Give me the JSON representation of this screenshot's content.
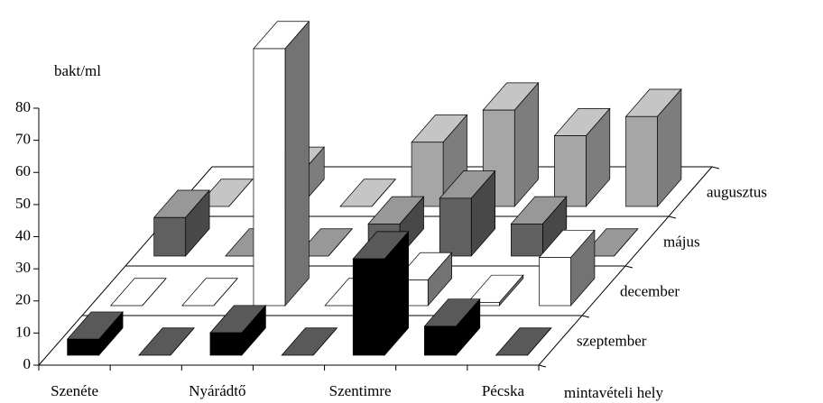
{
  "chart_data": {
    "type": "bar3d",
    "y_label": "bakt/ml",
    "x_label": "mintavételi hely",
    "categories": [
      "Szenéte",
      null,
      "Nyárádtő",
      null,
      "Szentimre",
      null,
      "Pécska"
    ],
    "series": [
      {
        "name": "szeptember",
        "color": "#000000",
        "values": [
          5,
          0,
          7,
          0,
          30,
          9,
          0
        ]
      },
      {
        "name": "december",
        "color": "#ffffff",
        "values": [
          0,
          0,
          80,
          0,
          8,
          1,
          15
        ]
      },
      {
        "name": "május",
        "color": "#606060",
        "values": [
          12,
          0,
          0,
          10,
          18,
          10,
          0
        ]
      },
      {
        "name": "augusztus",
        "color": "#a6a6a6",
        "values": [
          0,
          10,
          0,
          20,
          30,
          22,
          28
        ]
      }
    ],
    "ylim": [
      0,
      80
    ],
    "yticks": [
      0,
      10,
      20,
      30,
      40,
      50,
      60,
      70,
      80
    ]
  }
}
